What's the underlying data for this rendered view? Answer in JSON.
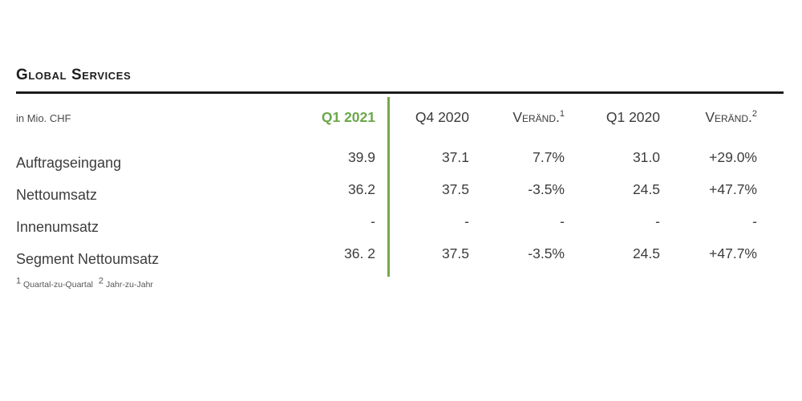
{
  "section": {
    "title": "Global Services",
    "unit_label": "in Mio. CHF"
  },
  "colors": {
    "accent_green": "#6ca74a",
    "divider_green": "#74a94c",
    "rule_black": "#1c1c1c"
  },
  "table": {
    "columns": [
      {
        "label": "Q1 2021",
        "sup": "",
        "current": true
      },
      {
        "label": "Q4 2020",
        "sup": ""
      },
      {
        "label": "Veränd.",
        "sup": "1"
      },
      {
        "label": "Q1 2020",
        "sup": ""
      },
      {
        "label": "Veränd.",
        "sup": "2"
      }
    ],
    "rows": [
      {
        "label": "Auftragseingang",
        "values": [
          "39.9",
          "37.1",
          "7.7%",
          "31.0",
          "+29.0%"
        ]
      },
      {
        "label": "Nettoumsatz",
        "values": [
          "36.2",
          "37.5",
          "-3.5%",
          "24.5",
          "+47.7%"
        ]
      },
      {
        "label": "Innenumsatz",
        "values": [
          "-",
          "-",
          "-",
          "-",
          "-"
        ]
      },
      {
        "label": "Segment Nettoumsatz",
        "values": [
          "36. 2",
          "37.5",
          "-3.5%",
          "24.5",
          "+47.7%"
        ]
      }
    ]
  },
  "footnotes": [
    {
      "sup": "1",
      "text": "Quartal-zu-Quartal"
    },
    {
      "sup": "2",
      "text": "Jahr-zu-Jahr"
    }
  ]
}
